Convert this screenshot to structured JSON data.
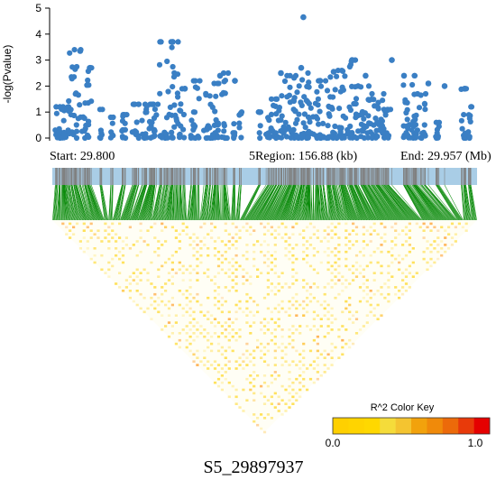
{
  "chart_data": {
    "type": "scatter",
    "title": "",
    "xlabel": "",
    "ylabel": "-log(Pvalue)",
    "ylim": [
      0,
      5
    ],
    "yticks": [
      "0",
      "1",
      "2",
      "3",
      "4",
      "5"
    ],
    "xlim": [
      29.8,
      29.957
    ],
    "grid": false,
    "point_color": "#3a7fc4",
    "region_info": {
      "start_label": "Start: 29.800",
      "region_label": "5Region: 156.88 (kb)",
      "end_label": "End: 29.957 (Mb)"
    },
    "snp_track_color": "#a9cde6",
    "snp_tick_color": "#808080",
    "ld_link_color": "#0a8a0a",
    "ld_heatmap_colors": [
      "#ffd20a",
      "#ffb000",
      "#ff8a00",
      "#ff5a00",
      "#e80000"
    ],
    "color_key": {
      "title": "R^2 Color Key",
      "min_label": "0.0",
      "max_label": "1.0",
      "colors": [
        "#ffd000",
        "#ffd400",
        "#ffd800",
        "#f5dc3a",
        "#f4c430",
        "#f2a20c",
        "#f08a0a",
        "#ec6a0a",
        "#e83a0a",
        "#e50000"
      ]
    },
    "snp_label": "S5_29897937",
    "clusters": [
      {
        "from": 29.8005,
        "to": 29.806,
        "max": 1.2
      },
      {
        "from": 29.806,
        "to": 29.8105,
        "max": 3.4
      },
      {
        "from": 29.811,
        "to": 29.8145,
        "max": 2.7
      },
      {
        "from": 29.8175,
        "to": 29.8185,
        "max": 1.1
      },
      {
        "from": 29.8215,
        "to": 29.8225,
        "max": 0.8
      },
      {
        "from": 29.8255,
        "to": 29.8275,
        "max": 0.9
      },
      {
        "from": 29.8295,
        "to": 29.832,
        "max": 1.3
      },
      {
        "from": 29.833,
        "to": 29.839,
        "max": 1.3
      },
      {
        "from": 29.8395,
        "to": 29.8465,
        "max": 3.7
      },
      {
        "from": 29.847,
        "to": 29.849,
        "max": 1.9
      },
      {
        "from": 29.851,
        "to": 29.8545,
        "max": 2.2
      },
      {
        "from": 29.856,
        "to": 29.8615,
        "max": 2.1
      },
      {
        "from": 29.8625,
        "to": 29.865,
        "max": 2.5
      },
      {
        "from": 29.8665,
        "to": 29.8675,
        "max": 2.2
      },
      {
        "from": 29.869,
        "to": 29.87,
        "max": 1.0
      },
      {
        "from": 29.876,
        "to": 29.877,
        "max": 1.0
      },
      {
        "from": 29.879,
        "to": 29.883,
        "max": 1.5
      },
      {
        "from": 29.883,
        "to": 29.89,
        "max": 2.4
      },
      {
        "from": 29.89,
        "to": 29.8945,
        "max": 2.5
      },
      {
        "from": 29.8945,
        "to": 29.901,
        "max": 2.2
      },
      {
        "from": 29.901,
        "to": 29.907,
        "max": 2.6
      },
      {
        "from": 29.907,
        "to": 29.912,
        "max": 3.0
      },
      {
        "from": 29.912,
        "to": 29.917,
        "max": 2.0
      },
      {
        "from": 29.917,
        "to": 29.9225,
        "max": 1.7
      },
      {
        "from": 29.9225,
        "to": 29.925,
        "max": 1.1
      },
      {
        "from": 29.929,
        "to": 29.934,
        "max": 2.4
      },
      {
        "from": 29.934,
        "to": 29.938,
        "max": 1.7
      },
      {
        "from": 29.9415,
        "to": 29.943,
        "max": 0.6
      },
      {
        "from": 29.951,
        "to": 29.953,
        "max": 1.9
      },
      {
        "from": 29.9535,
        "to": 29.955,
        "max": 1.2
      }
    ],
    "highlight_points": [
      {
        "x": 29.8103,
        "y": 3.35
      },
      {
        "x": 29.814,
        "y": 2.7
      },
      {
        "x": 29.8445,
        "y": 3.7
      },
      {
        "x": 29.849,
        "y": 1.9
      },
      {
        "x": 29.862,
        "y": 2.4
      },
      {
        "x": 29.8675,
        "y": 2.2
      },
      {
        "x": 29.8845,
        "y": 2.5
      },
      {
        "x": 29.8928,
        "y": 4.65
      },
      {
        "x": 29.892,
        "y": 2.7
      },
      {
        "x": 29.899,
        "y": 2.2
      },
      {
        "x": 29.904,
        "y": 2.55
      },
      {
        "x": 29.9108,
        "y": 3.0
      },
      {
        "x": 29.9158,
        "y": 2.4
      },
      {
        "x": 29.9255,
        "y": 3.0
      },
      {
        "x": 29.93,
        "y": 2.4
      },
      {
        "x": 29.939,
        "y": 2.1
      },
      {
        "x": 29.9525,
        "y": 1.9
      },
      {
        "x": 29.945,
        "y": 2.0
      }
    ]
  }
}
